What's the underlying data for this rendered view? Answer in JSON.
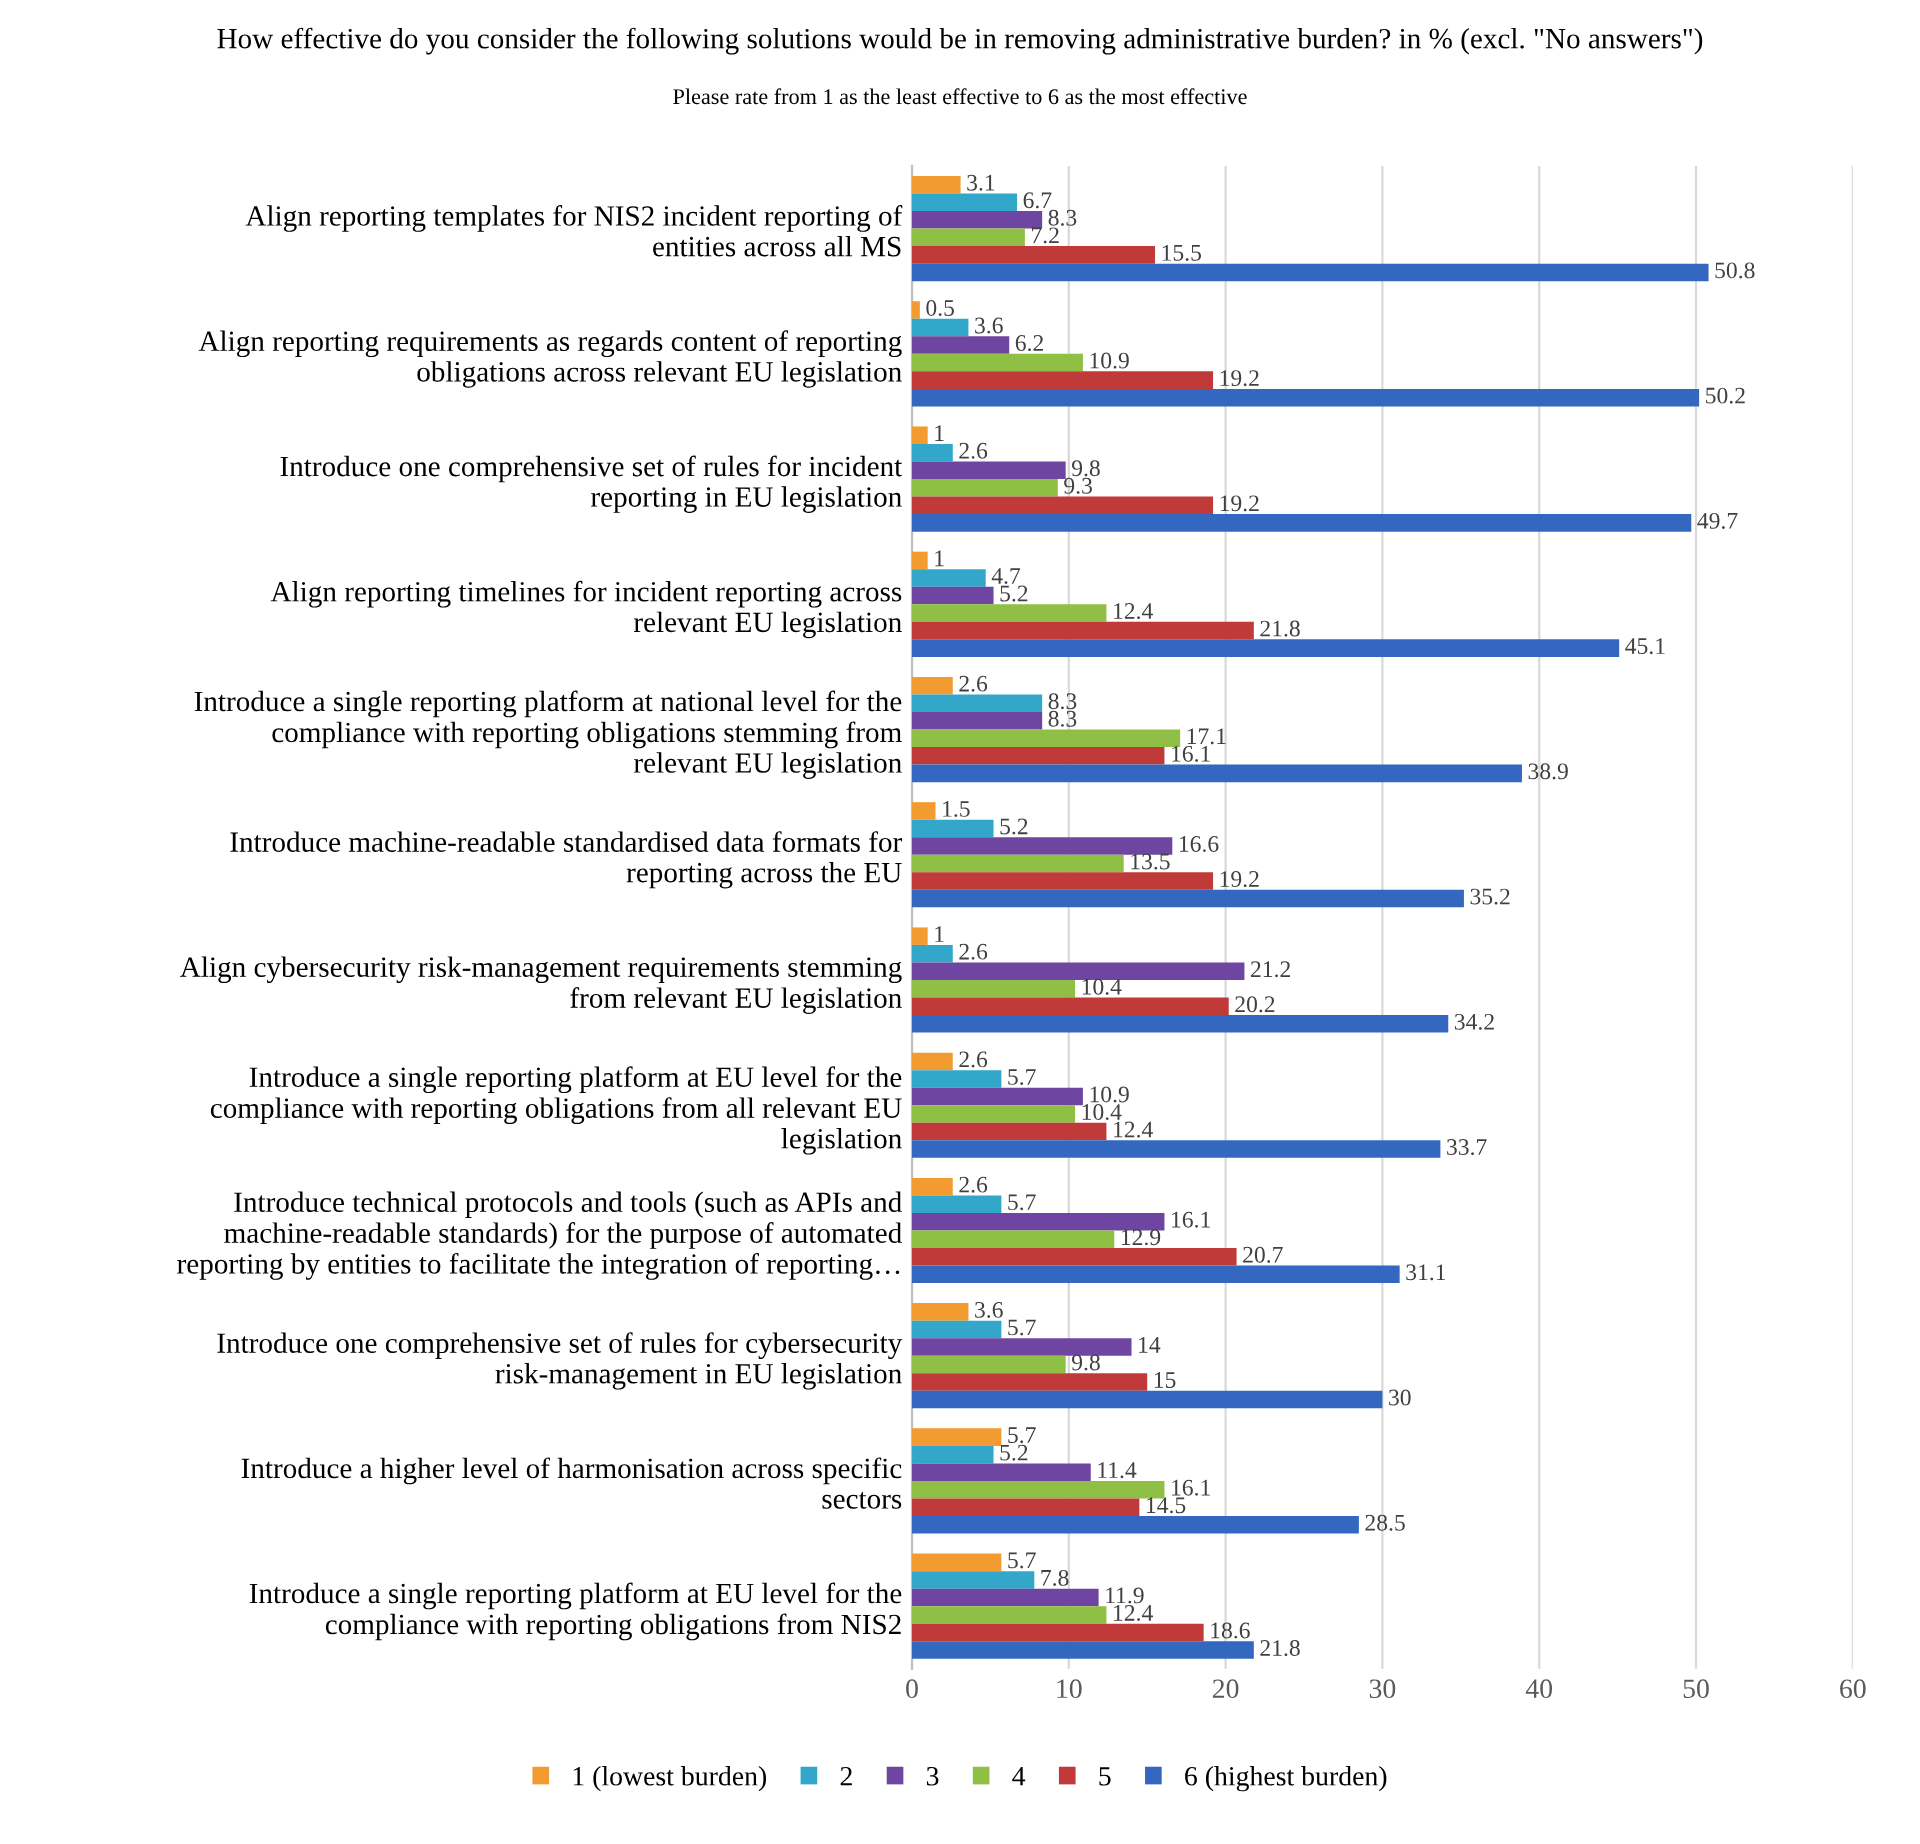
{
  "chart_data": {
    "type": "bar",
    "orientation": "horizontal",
    "title": "How effective do you consider the following solutions would be in removing administrative burden? in % (excl. \"No answers\")",
    "subtitle": "Please rate from 1 as the least effective to 6 as the most effective",
    "categories": [
      "Align reporting templates for NIS2 incident reporting of\nentities across all MS",
      "Align reporting requirements as regards content of reporting\nobligations across relevant EU legislation",
      "Introduce one comprehensive set of rules for incident\nreporting in EU legislation",
      "Align reporting timelines for incident reporting across\nrelevant EU legislation",
      "Introduce a single reporting platform at national level for the\ncompliance with reporting obligations stemming from\nrelevant EU legislation",
      "Introduce machine-readable standardised data formats for\nreporting across the EU",
      "Align cybersecurity risk-management requirements stemming\nfrom relevant EU legislation",
      "Introduce a single reporting platform at EU level for the\ncompliance with reporting obligations from all relevant EU\nlegislation",
      "Introduce technical protocols and tools (such as APIs and\nmachine-readable standards) for the purpose of automated\nreporting by entities to facilitate the integration of reporting…",
      "Introduce one comprehensive set of rules for cybersecurity\nrisk-management in EU legislation",
      "Introduce a higher level of harmonisation across specific\nsectors",
      "Introduce a single reporting platform at EU level for the\ncompliance with reporting obligations from NIS2"
    ],
    "series": [
      {
        "name": "1 (lowest burden)",
        "color": "#f29b30",
        "values": [
          3.1,
          0.5,
          1,
          1,
          2.6,
          1.5,
          1,
          2.6,
          2.6,
          3.6,
          5.7,
          5.7
        ]
      },
      {
        "name": "2",
        "color": "#33a7c9",
        "values": [
          6.7,
          3.6,
          2.6,
          4.7,
          8.3,
          5.2,
          2.6,
          5.7,
          5.7,
          5.7,
          5.2,
          7.8
        ]
      },
      {
        "name": "3",
        "color": "#6e45a0",
        "values": [
          8.3,
          6.2,
          9.8,
          5.2,
          8.3,
          16.6,
          21.2,
          10.9,
          16.1,
          14,
          11.4,
          11.9
        ]
      },
      {
        "name": "4",
        "color": "#8fbf45",
        "values": [
          7.2,
          10.9,
          9.3,
          12.4,
          17.1,
          13.5,
          10.4,
          10.4,
          12.9,
          9.8,
          16.1,
          12.4
        ]
      },
      {
        "name": "5",
        "color": "#c03a3a",
        "values": [
          15.5,
          19.2,
          19.2,
          21.8,
          16.1,
          19.2,
          20.2,
          12.4,
          20.7,
          15,
          14.5,
          18.6
        ]
      },
      {
        "name": "6 (highest burden)",
        "color": "#3468c0",
        "values": [
          50.8,
          50.2,
          49.7,
          45.1,
          38.9,
          35.2,
          34.2,
          33.7,
          31.1,
          30,
          28.5,
          21.8
        ]
      }
    ],
    "xlim": [
      0,
      60
    ],
    "xticks": [
      0,
      10,
      20,
      30,
      40,
      50,
      60
    ],
    "grid": "x",
    "legend": "bottom",
    "data_labels": true
  }
}
